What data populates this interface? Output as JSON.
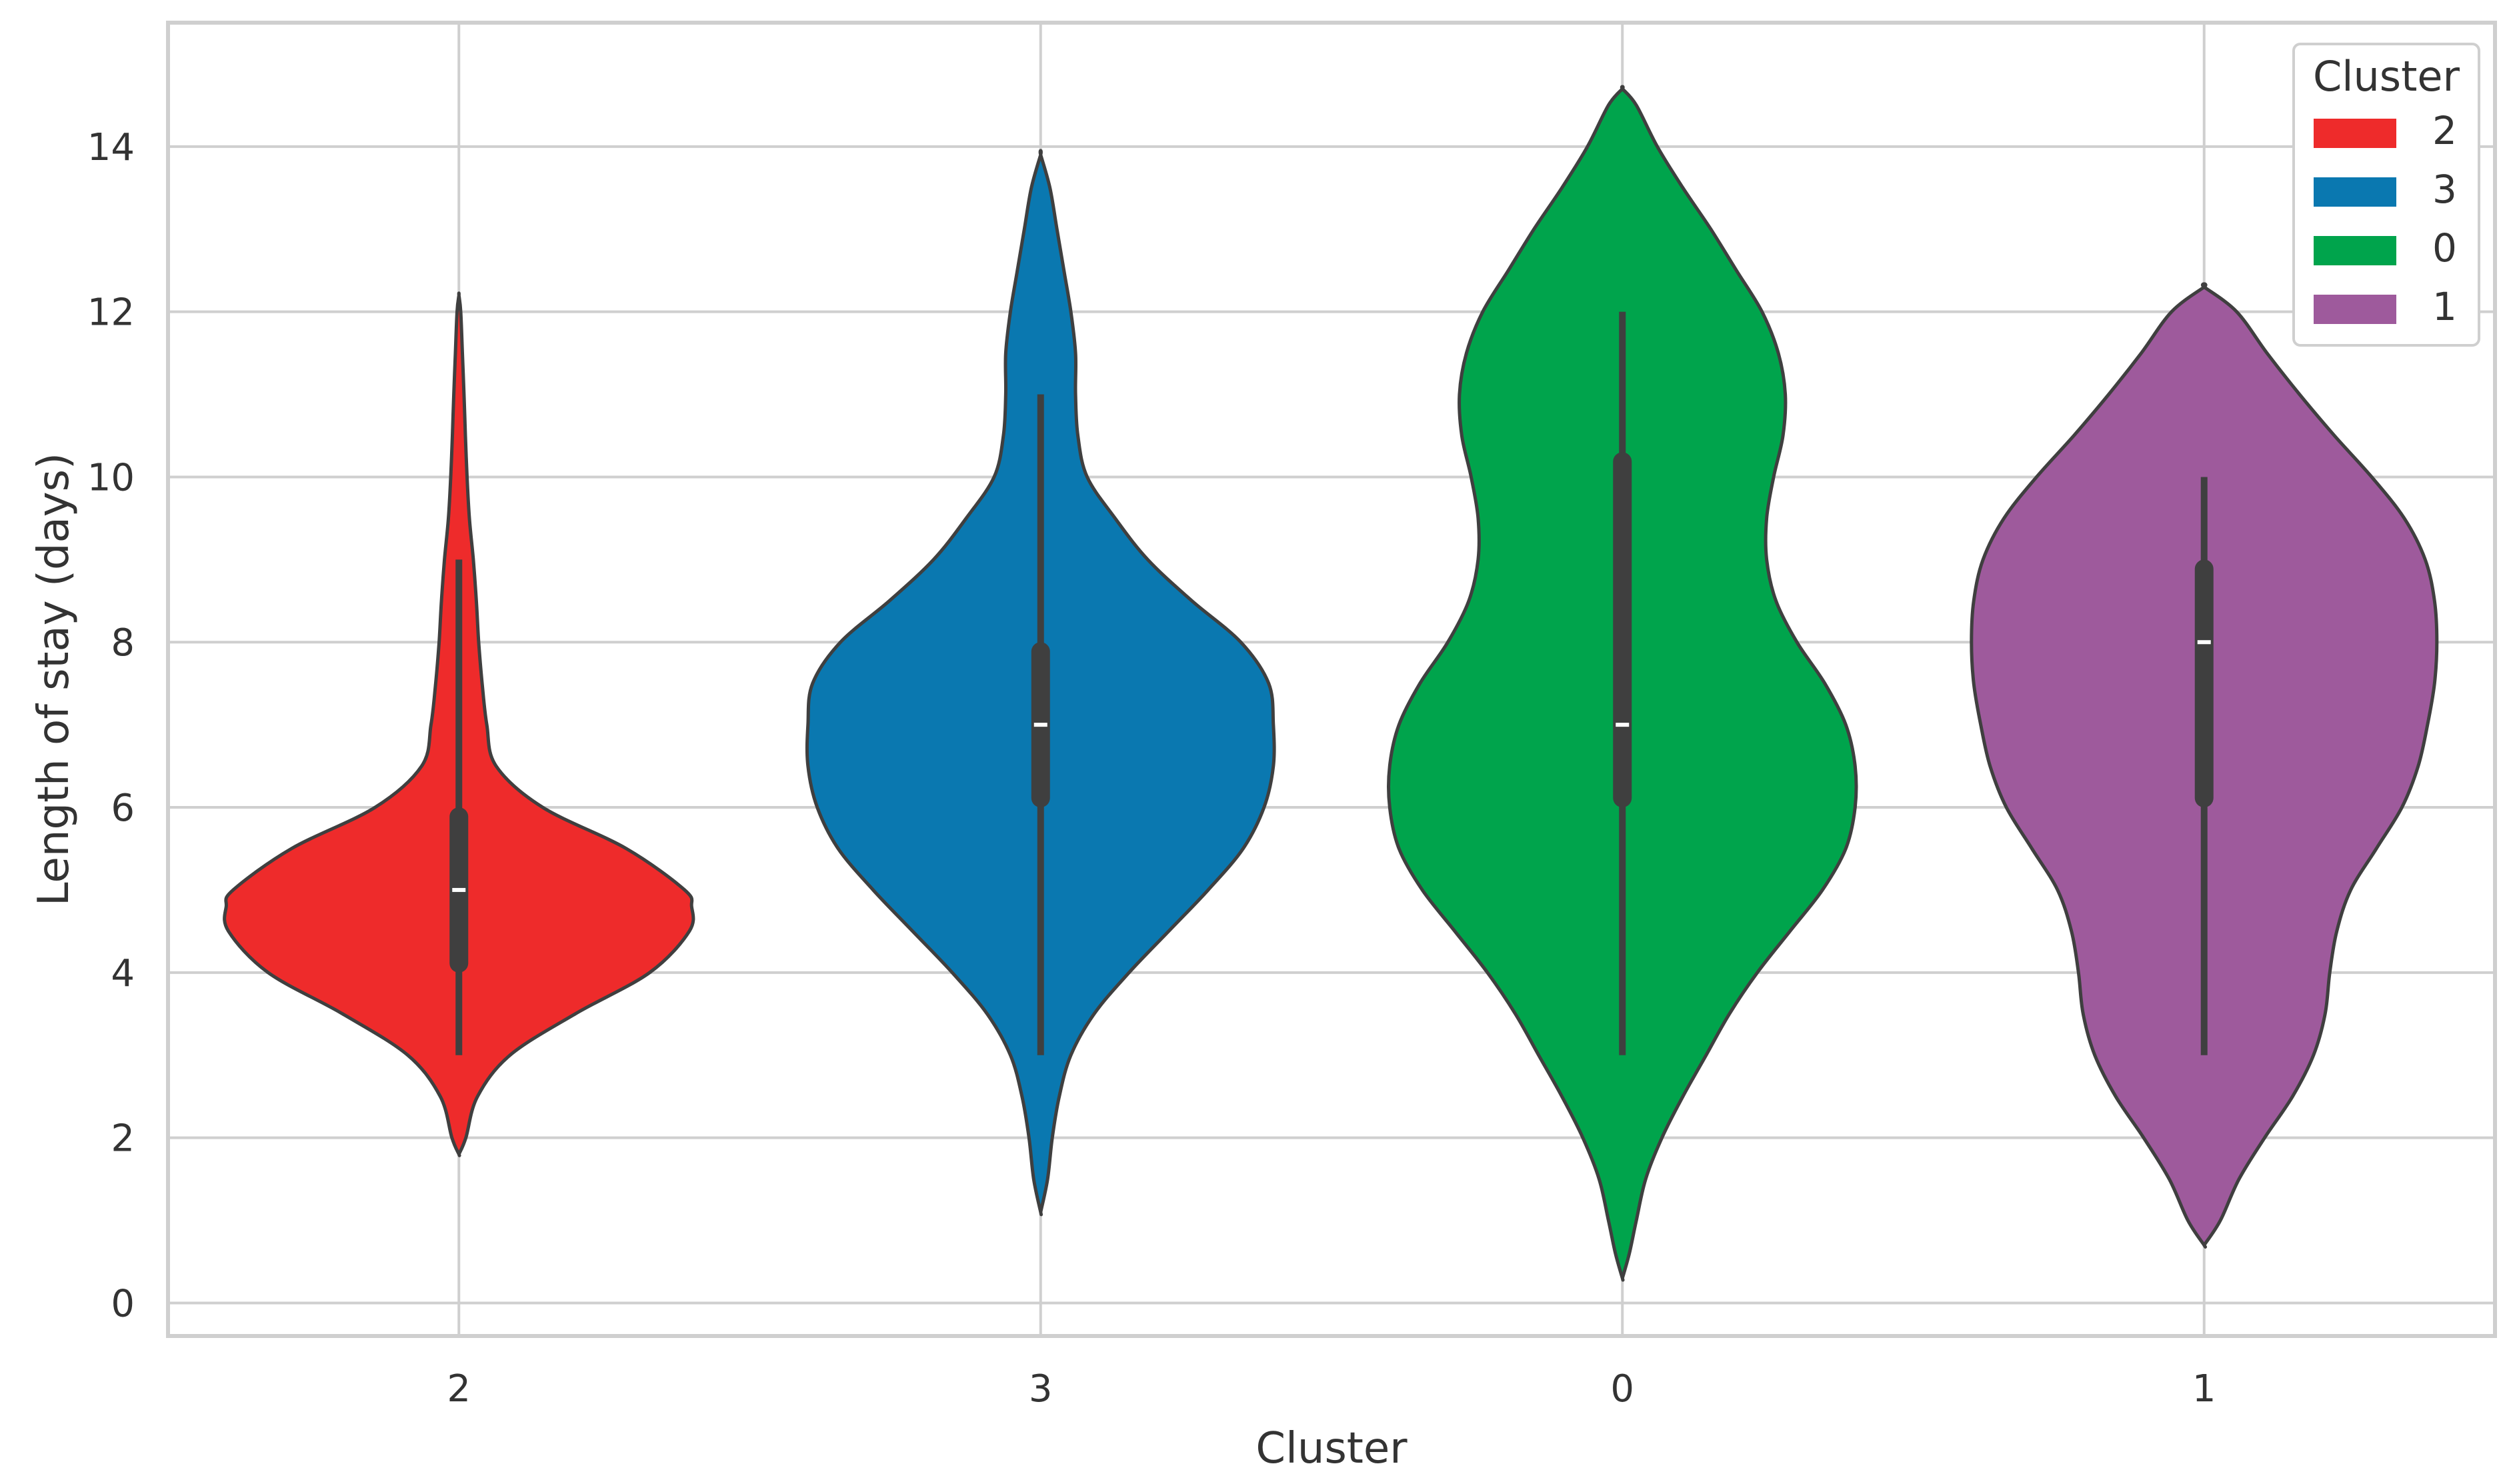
{
  "chart_data": {
    "type": "violin",
    "title": "",
    "xlabel": "Cluster",
    "ylabel": "Length of stay (days)",
    "categories": [
      "2",
      "3",
      "0",
      "1"
    ],
    "ylim": [
      -0.4,
      15.5
    ],
    "yticks": [
      0,
      2,
      4,
      6,
      8,
      10,
      12,
      14
    ],
    "grid": true,
    "legend": {
      "title": "Cluster",
      "placement": "top-right",
      "entries": [
        {
          "label": "2",
          "color": "#EE2B2B"
        },
        {
          "label": "3",
          "color": "#0A78B0"
        },
        {
          "label": "0",
          "color": "#00A44C"
        },
        {
          "label": "1",
          "color": "#9E5A9C"
        }
      ]
    },
    "series": [
      {
        "category": "2",
        "color": "#EE2B2B",
        "median": 5,
        "q1": 4,
        "q3": 6,
        "whisker_low": 3,
        "whisker_high": 9,
        "kde_min": 1.8,
        "kde_max": 12.2,
        "density": [
          [
            1.8,
            0.0
          ],
          [
            2.0,
            0.03
          ],
          [
            2.5,
            0.08
          ],
          [
            3.0,
            0.22
          ],
          [
            3.5,
            0.5
          ],
          [
            4.0,
            0.82
          ],
          [
            4.5,
            0.99
          ],
          [
            4.8,
            1.0
          ],
          [
            5.0,
            0.97
          ],
          [
            5.5,
            0.72
          ],
          [
            6.0,
            0.36
          ],
          [
            6.5,
            0.16
          ],
          [
            7.0,
            0.12
          ],
          [
            7.5,
            0.1
          ],
          [
            8.0,
            0.085
          ],
          [
            8.5,
            0.075
          ],
          [
            9.0,
            0.062
          ],
          [
            9.5,
            0.045
          ],
          [
            10.0,
            0.035
          ],
          [
            10.5,
            0.028
          ],
          [
            11.0,
            0.022
          ],
          [
            11.5,
            0.015
          ],
          [
            12.0,
            0.008
          ],
          [
            12.2,
            0.0
          ]
        ]
      },
      {
        "category": "3",
        "color": "#0A78B0",
        "median": 7,
        "q1": 6,
        "q3": 8,
        "whisker_low": 3,
        "whisker_high": 11,
        "kde_min": 1.1,
        "kde_max": 13.9,
        "density": [
          [
            1.1,
            0.0
          ],
          [
            1.5,
            0.03
          ],
          [
            2.0,
            0.05
          ],
          [
            2.5,
            0.08
          ],
          [
            3.0,
            0.13
          ],
          [
            3.5,
            0.23
          ],
          [
            4.0,
            0.38
          ],
          [
            4.5,
            0.55
          ],
          [
            5.0,
            0.72
          ],
          [
            5.5,
            0.87
          ],
          [
            6.0,
            0.96
          ],
          [
            6.5,
            1.0
          ],
          [
            7.0,
            1.0
          ],
          [
            7.5,
            0.98
          ],
          [
            8.0,
            0.86
          ],
          [
            8.5,
            0.65
          ],
          [
            9.0,
            0.46
          ],
          [
            9.5,
            0.32
          ],
          [
            10.0,
            0.2
          ],
          [
            10.5,
            0.16
          ],
          [
            11.0,
            0.15
          ],
          [
            11.5,
            0.15
          ],
          [
            12.0,
            0.13
          ],
          [
            12.5,
            0.1
          ],
          [
            13.0,
            0.07
          ],
          [
            13.5,
            0.04
          ],
          [
            13.9,
            0.0
          ]
        ]
      },
      {
        "category": "0",
        "color": "#00A44C",
        "median": 7,
        "q1": 6,
        "q3": 10.3,
        "whisker_low": 3,
        "whisker_high": 12,
        "kde_min": 0.3,
        "kde_max": 14.7,
        "density": [
          [
            0.3,
            0.0
          ],
          [
            0.6,
            0.03
          ],
          [
            1.0,
            0.06
          ],
          [
            1.5,
            0.1
          ],
          [
            2.0,
            0.17
          ],
          [
            2.5,
            0.26
          ],
          [
            3.0,
            0.36
          ],
          [
            3.5,
            0.46
          ],
          [
            4.0,
            0.58
          ],
          [
            4.5,
            0.72
          ],
          [
            5.0,
            0.86
          ],
          [
            5.5,
            0.96
          ],
          [
            6.0,
            1.0
          ],
          [
            6.5,
            1.0
          ],
          [
            7.0,
            0.96
          ],
          [
            7.5,
            0.87
          ],
          [
            8.0,
            0.75
          ],
          [
            8.5,
            0.66
          ],
          [
            9.0,
            0.62
          ],
          [
            9.5,
            0.62
          ],
          [
            10.0,
            0.65
          ],
          [
            10.5,
            0.69
          ],
          [
            11.0,
            0.7
          ],
          [
            11.5,
            0.67
          ],
          [
            12.0,
            0.6
          ],
          [
            12.5,
            0.49
          ],
          [
            13.0,
            0.38
          ],
          [
            13.5,
            0.26
          ],
          [
            14.0,
            0.15
          ],
          [
            14.5,
            0.06
          ],
          [
            14.7,
            0.0
          ]
        ]
      },
      {
        "category": "1",
        "color": "#9E5A9C",
        "median": 8,
        "q1": 6,
        "q3": 9,
        "whisker_low": 3,
        "whisker_high": 10,
        "kde_min": 0.7,
        "kde_max": 12.3,
        "density": [
          [
            0.7,
            0.0
          ],
          [
            1.0,
            0.07
          ],
          [
            1.5,
            0.15
          ],
          [
            2.0,
            0.26
          ],
          [
            2.5,
            0.38
          ],
          [
            3.0,
            0.47
          ],
          [
            3.5,
            0.52
          ],
          [
            4.0,
            0.54
          ],
          [
            4.5,
            0.57
          ],
          [
            5.0,
            0.63
          ],
          [
            5.5,
            0.74
          ],
          [
            6.0,
            0.85
          ],
          [
            6.5,
            0.92
          ],
          [
            7.0,
            0.96
          ],
          [
            7.5,
            0.99
          ],
          [
            8.0,
            1.0
          ],
          [
            8.5,
            0.99
          ],
          [
            9.0,
            0.95
          ],
          [
            9.5,
            0.86
          ],
          [
            10.0,
            0.72
          ],
          [
            10.5,
            0.56
          ],
          [
            11.0,
            0.41
          ],
          [
            11.5,
            0.27
          ],
          [
            12.0,
            0.14
          ],
          [
            12.3,
            0.0
          ]
        ]
      }
    ]
  }
}
